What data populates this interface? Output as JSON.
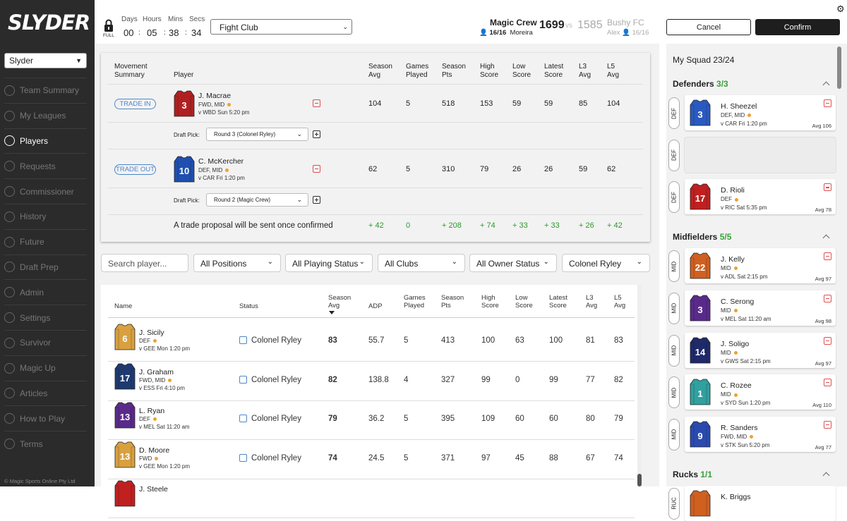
{
  "brand": {
    "name": "SLYDER"
  },
  "sidebar": {
    "league_select": "Slyder",
    "items": [
      {
        "label": "Team Summary",
        "icon": "team-icon"
      },
      {
        "label": "My Leagues",
        "icon": "leagues-icon"
      },
      {
        "label": "Players",
        "icon": "players-icon",
        "active": true
      },
      {
        "label": "Requests",
        "icon": "requests-icon"
      },
      {
        "label": "Commissioner",
        "icon": "commissioner-icon"
      },
      {
        "label": "History",
        "icon": "history-icon"
      },
      {
        "label": "Future",
        "icon": "future-icon"
      },
      {
        "label": "Draft Prep",
        "icon": "draft-icon"
      },
      {
        "label": "Admin",
        "icon": "admin-icon"
      },
      {
        "label": "Settings",
        "icon": "settings-icon"
      },
      {
        "label": "Survivor",
        "icon": "survivor-icon"
      },
      {
        "label": "Magic Up",
        "icon": "magic-icon"
      },
      {
        "label": "Articles",
        "icon": "articles-icon"
      },
      {
        "label": "How to Play",
        "icon": "help-icon"
      },
      {
        "label": "Terms",
        "icon": "terms-icon"
      }
    ],
    "copyright": "© Magic Sports Online Pty Ltd"
  },
  "topbar": {
    "lock_label": "FULL",
    "timer": {
      "days_label": "Days",
      "hours_label": "Hours",
      "mins_label": "Mins",
      "secs_label": "Secs",
      "days": "00",
      "hours": "05",
      "mins": "38",
      "secs": "34"
    },
    "club_select": "Fight Club",
    "match": {
      "home_team": "Magic Crew",
      "home_count": "16/16",
      "home_owner": "Moreira",
      "home_score": "1699",
      "vs": "vs",
      "away_score": "1585",
      "away_team": "Bushy FC",
      "away_owner": "Alex",
      "away_count": "16/16"
    }
  },
  "actions": {
    "cancel": "Cancel",
    "confirm": "Confirm"
  },
  "trade": {
    "headers": {
      "movement": "Movement\nSummary",
      "player": "Player",
      "season_avg": "Season\nAvg",
      "games_played": "Games\nPlayed",
      "season_pts": "Season\nPts",
      "high_score": "High\nScore",
      "low_score": "Low\nScore",
      "latest_score": "Latest\nScore",
      "l3_avg": "L3\nAvg",
      "l5_avg": "L5\nAvg"
    },
    "rows": [
      {
        "movement": "TRADE IN",
        "name": "J. Macrae",
        "pos": "FWD, MID",
        "fixture": "v WBD Sun 5:20 pm",
        "jersey_number": "3",
        "jersey_color": "#b02020",
        "values": [
          "104",
          "5",
          "518",
          "153",
          "59",
          "59",
          "85",
          "104"
        ],
        "draft_label": "Draft Pick:",
        "draft_pick": "Round 3 (Colonel Ryley)"
      },
      {
        "movement": "TRADE OUT",
        "name": "C. McKercher",
        "pos": "DEF, MID",
        "fixture": "v CAR Fri 1:20 pm",
        "jersey_number": "10",
        "jersey_color": "#1f4fb0",
        "values": [
          "62",
          "5",
          "310",
          "79",
          "26",
          "26",
          "59",
          "62"
        ],
        "draft_label": "Draft Pick:",
        "draft_pick": "Round 2 (Magic Crew)"
      }
    ],
    "summary": {
      "text": "A trade proposal will be sent once confirmed",
      "values": [
        "+ 42",
        "0",
        "+ 208",
        "+ 74",
        "+ 33",
        "+ 33",
        "+ 26",
        "+ 42"
      ]
    }
  },
  "filters": {
    "search_placeholder": "Search player...",
    "positions": "All Positions",
    "playing_status": "All Playing Status",
    "clubs": "All Clubs",
    "owner_status": "All Owner Status",
    "owner": "Colonel Ryley"
  },
  "list": {
    "headers": {
      "name": "Name",
      "status": "Status",
      "season_avg": "Season\nAvg",
      "adp": "ADP",
      "games_played": "Games\nPlayed",
      "season_pts": "Season\nPts",
      "high_score": "High\nScore",
      "low_score": "Low\nScore",
      "latest_score": "Latest\nScore",
      "l3_avg": "L3\nAvg",
      "l5_avg": "L5\nAvg"
    },
    "rows": [
      {
        "name": "J. Sicily",
        "pos": "DEF",
        "fixture": "v GEE Mon 1:20 pm",
        "jersey_number": "6",
        "jersey_color": "#d8a040",
        "status": "Colonel Ryley",
        "values": [
          "83",
          "55.7",
          "5",
          "413",
          "100",
          "63",
          "100",
          "81",
          "83"
        ]
      },
      {
        "name": "J. Graham",
        "pos": "FWD, MID",
        "fixture": "v ESS Fri 4:10 pm",
        "jersey_number": "17",
        "jersey_color": "#1e3a70",
        "status": "Colonel Ryley",
        "values": [
          "82",
          "138.8",
          "4",
          "327",
          "99",
          "0",
          "99",
          "77",
          "82"
        ]
      },
      {
        "name": "L. Ryan",
        "pos": "DEF",
        "fixture": "v MEL Sat 11:20 am",
        "jersey_number": "13",
        "jersey_color": "#5a2a8a",
        "status": "Colonel Ryley",
        "values": [
          "79",
          "36.2",
          "5",
          "395",
          "109",
          "60",
          "60",
          "80",
          "79"
        ]
      },
      {
        "name": "D. Moore",
        "pos": "FWD",
        "fixture": "v GEE Mon 1:20 pm",
        "jersey_number": "13",
        "jersey_color": "#d8a040",
        "status": "Colonel Ryley",
        "values": [
          "74",
          "24.5",
          "5",
          "371",
          "97",
          "45",
          "88",
          "67",
          "74"
        ]
      },
      {
        "name": "J. Steele",
        "pos": "",
        "fixture": "",
        "jersey_number": "",
        "jersey_color": "#c02020",
        "status": "",
        "values": []
      }
    ]
  },
  "squad": {
    "title": "My Squad 23/24",
    "sections": [
      {
        "name": "Defenders",
        "count": "3/3",
        "code": "DEF",
        "players": [
          {
            "name": "H. Sheezel",
            "pos": "DEF, MID",
            "fixture": "v CAR Fri 1:20 pm",
            "avg": "Avg 106",
            "jersey_number": "3",
            "jersey_color": "#2a5ac0"
          },
          {
            "empty": true
          },
          {
            "name": "D. Rioli",
            "pos": "DEF",
            "fixture": "v RIC Sat 5:35 pm",
            "avg": "Avg 78",
            "jersey_number": "17",
            "jersey_color": "#c02020"
          }
        ]
      },
      {
        "name": "Midfielders",
        "count": "5/5",
        "code": "MID",
        "players": [
          {
            "name": "J. Kelly",
            "pos": "MID",
            "fixture": "v ADL Sat 2:15 pm",
            "avg": "Avg 97",
            "jersey_number": "22",
            "jersey_color": "#d06020"
          },
          {
            "name": "C. Serong",
            "pos": "MID",
            "fixture": "v MEL Sat 11:20 am",
            "avg": "Avg 98",
            "jersey_number": "3",
            "jersey_color": "#5a2a8a"
          },
          {
            "name": "J. Soligo",
            "pos": "MID",
            "fixture": "v GWS Sat 2:15 pm",
            "avg": "Avg 97",
            "jersey_number": "14",
            "jersey_color": "#1e2a6a"
          },
          {
            "name": "C. Rozee",
            "pos": "MID",
            "fixture": "v SYD Sun 1:20 pm",
            "avg": "Avg 110",
            "jersey_number": "1",
            "jersey_color": "#30a0a0"
          },
          {
            "name": "R. Sanders",
            "pos": "FWD, MID",
            "fixture": "v STK Sun 5:20 pm",
            "avg": "Avg 77",
            "jersey_number": "9",
            "jersey_color": "#2a4ab0"
          }
        ]
      },
      {
        "name": "Rucks",
        "count": "1/1",
        "code": "RUC",
        "players": [
          {
            "name": "K. Briggs",
            "pos": "",
            "fixture": "",
            "avg": "",
            "jersey_number": "",
            "jersey_color": "#d06020"
          }
        ]
      }
    ]
  }
}
